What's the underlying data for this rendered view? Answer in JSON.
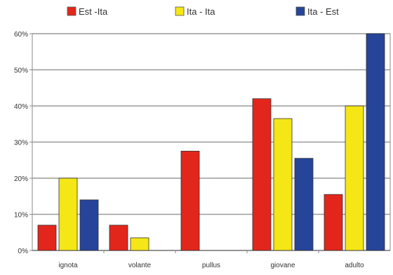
{
  "chart_data": {
    "type": "bar",
    "categories": [
      "ignota",
      "volante",
      "pullus",
      "giovane",
      "adulto"
    ],
    "series": [
      {
        "name": "Est -Ita",
        "color": "#e3261b",
        "values": [
          7,
          7,
          27.5,
          42,
          15.5
        ]
      },
      {
        "name": "Ita - Ita",
        "color": "#f5e615",
        "values": [
          20,
          3.5,
          0,
          36.5,
          40
        ]
      },
      {
        "name": "Ita - Est",
        "color": "#26449a",
        "values": [
          14,
          0,
          0,
          25.5,
          60
        ]
      }
    ],
    "ylim": [
      0,
      60
    ],
    "yticks": [
      0,
      10,
      20,
      30,
      40,
      50,
      60
    ],
    "ytick_format": "percent",
    "grid": true,
    "legend_position": "top",
    "title": "",
    "xlabel": "",
    "ylabel": ""
  }
}
